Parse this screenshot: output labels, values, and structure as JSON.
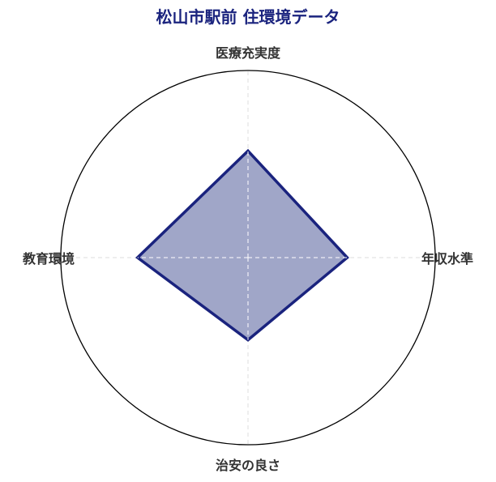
{
  "chart_data": {
    "type": "radar",
    "title": "松山市駅前 住環境データ",
    "axes": [
      "医療充実度",
      "年収水準",
      "治安の良さ",
      "教育環境"
    ],
    "values": [
      57,
      53,
      44,
      59
    ],
    "rlim": [
      0,
      100
    ],
    "grid": true,
    "colors": {
      "title": "#1a237e",
      "line": "#1a237e",
      "fill": "#a0a6c8",
      "outline": "#000000",
      "grid": "#dddddd"
    }
  }
}
